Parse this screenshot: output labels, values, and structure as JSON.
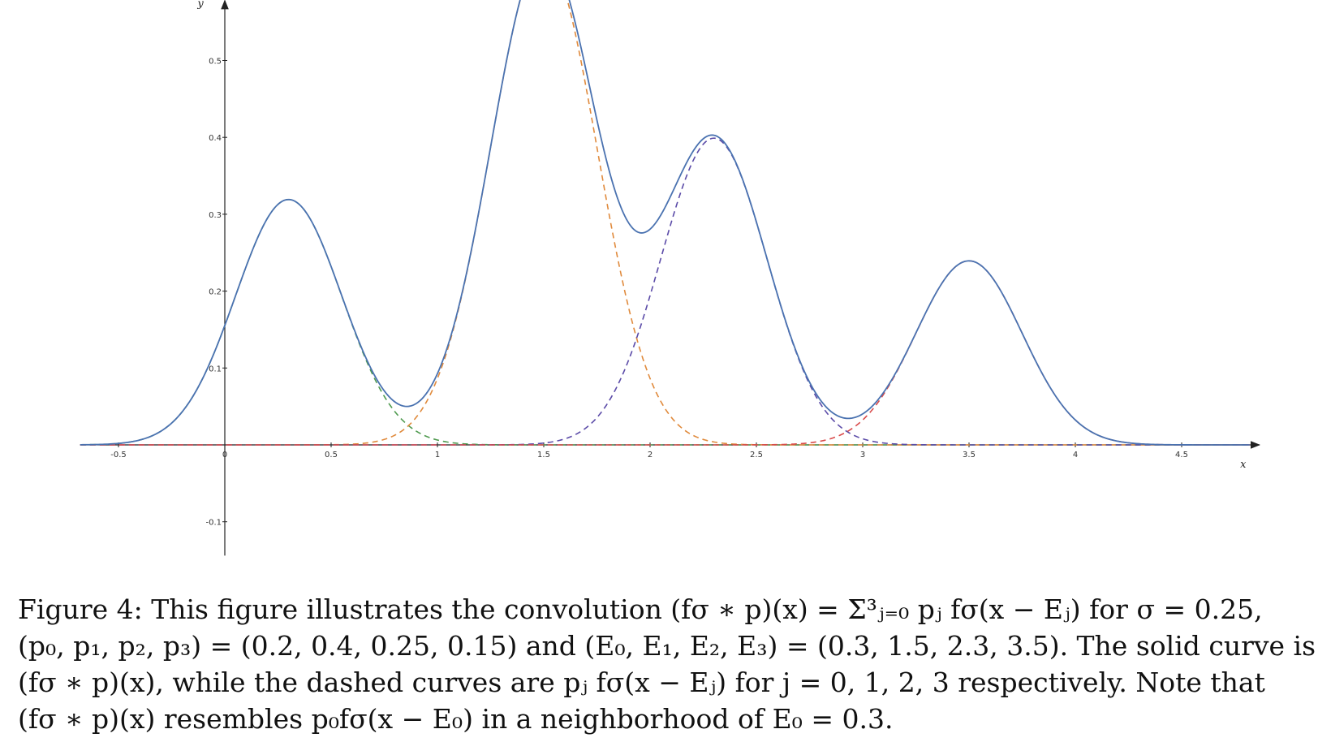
{
  "chart_data": {
    "type": "line",
    "title": "",
    "xlabel": "x",
    "ylabel": "y",
    "xlim": [
      -0.68,
      4.82
    ],
    "ylim": [
      -0.144,
      0.54
    ],
    "x_ticks": [
      -0.5,
      0,
      0.5,
      1,
      1.5,
      2,
      2.5,
      3,
      3.5,
      4,
      4.5
    ],
    "x_tick_labels": [
      "-0.5",
      "0",
      "0.5",
      "1",
      "1.5",
      "2",
      "2.5",
      "3",
      "3.5",
      "4",
      "4.5"
    ],
    "y_ticks": [
      -0.1,
      0.1,
      0.2,
      0.3,
      0.4,
      0.5
    ],
    "y_tick_labels": [
      "-0.1",
      "0.1",
      "0.2",
      "0.3",
      "0.4",
      "0.5"
    ],
    "grid": false,
    "sigma": 0.25,
    "weights": [
      0.2,
      0.4,
      0.25,
      0.15
    ],
    "centers": [
      0.3,
      1.5,
      2.3,
      3.5
    ],
    "series": [
      {
        "role": "sum",
        "style": "solid",
        "color": "#4a72b0"
      },
      {
        "role": "component",
        "index": 0,
        "style": "dashed",
        "color": "#4f9a4f"
      },
      {
        "role": "component",
        "index": 1,
        "style": "dashed",
        "color": "#e08a3c"
      },
      {
        "role": "component",
        "index": 2,
        "style": "dashed",
        "color": "#5b4ba8"
      },
      {
        "role": "component",
        "index": 3,
        "style": "dashed",
        "color": "#d94b4b"
      }
    ]
  },
  "caption": {
    "line1": "Figure 4: This figure illustrates the convolution (fσ ∗ p)(x) = Σ³ⱼ₌₀ pⱼ fσ(x − Eⱼ) for σ = 0.25,",
    "line2": "(p₀, p₁, p₂, p₃) = (0.2, 0.4, 0.25, 0.15) and (E₀, E₁, E₂, E₃) = (0.3, 1.5, 2.3, 3.5). The solid curve is",
    "line3": "(fσ ∗ p)(x), while the dashed curves are pⱼ fσ(x − Eⱼ) for j = 0, 1, 2, 3 respectively. Note that",
    "line4": "(fσ ∗ p)(x) resembles p₀fσ(x − E₀) in a neighborhood of E₀ = 0.3."
  }
}
